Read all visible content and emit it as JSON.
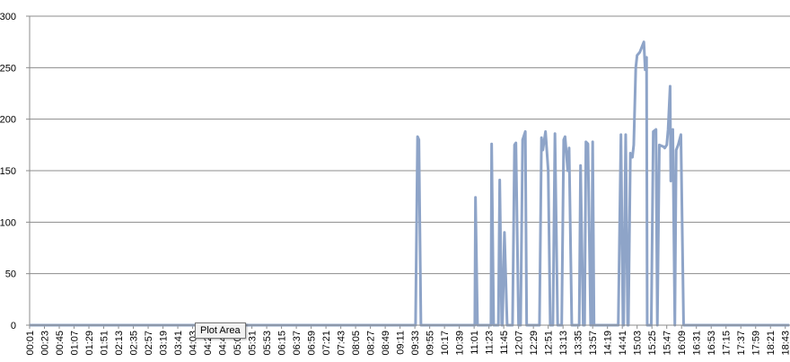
{
  "chart_data": {
    "type": "line",
    "color": "#8ea4c8",
    "grid": true,
    "ylim": [
      0,
      300
    ],
    "yticks": [
      0,
      50,
      100,
      150,
      200,
      250,
      300
    ],
    "xlim": [
      1,
      1130
    ],
    "xticks": [
      {
        "value": 1,
        "label": "00:01"
      },
      {
        "value": 23,
        "label": "00:23"
      },
      {
        "value": 45,
        "label": "00:45"
      },
      {
        "value": 67,
        "label": "01:07"
      },
      {
        "value": 89,
        "label": "01:29"
      },
      {
        "value": 111,
        "label": "01:51"
      },
      {
        "value": 133,
        "label": "02:13"
      },
      {
        "value": 155,
        "label": "02:35"
      },
      {
        "value": 177,
        "label": "02:57"
      },
      {
        "value": 199,
        "label": "03:19"
      },
      {
        "value": 221,
        "label": "03:41"
      },
      {
        "value": 243,
        "label": "04:03"
      },
      {
        "value": 265,
        "label": "04:25"
      },
      {
        "value": 287,
        "label": "04:47"
      },
      {
        "value": 309,
        "label": "05:09"
      },
      {
        "value": 331,
        "label": "05:31"
      },
      {
        "value": 353,
        "label": "05:53"
      },
      {
        "value": 375,
        "label": "06:15"
      },
      {
        "value": 397,
        "label": "06:37"
      },
      {
        "value": 419,
        "label": "06:59"
      },
      {
        "value": 441,
        "label": "07:21"
      },
      {
        "value": 463,
        "label": "07:43"
      },
      {
        "value": 485,
        "label": "08:05"
      },
      {
        "value": 507,
        "label": "08:27"
      },
      {
        "value": 529,
        "label": "08:49"
      },
      {
        "value": 551,
        "label": "09:11"
      },
      {
        "value": 573,
        "label": "09:33"
      },
      {
        "value": 595,
        "label": "09:55"
      },
      {
        "value": 617,
        "label": "10:17"
      },
      {
        "value": 639,
        "label": "10:39"
      },
      {
        "value": 661,
        "label": "11:01"
      },
      {
        "value": 683,
        "label": "11:23"
      },
      {
        "value": 705,
        "label": "11:45"
      },
      {
        "value": 727,
        "label": "12:07"
      },
      {
        "value": 749,
        "label": "12:29"
      },
      {
        "value": 771,
        "label": "12:51"
      },
      {
        "value": 793,
        "label": "13:13"
      },
      {
        "value": 815,
        "label": "13:35"
      },
      {
        "value": 837,
        "label": "13:57"
      },
      {
        "value": 859,
        "label": "14:19"
      },
      {
        "value": 881,
        "label": "14:41"
      },
      {
        "value": 903,
        "label": "15:03"
      },
      {
        "value": 925,
        "label": "15:25"
      },
      {
        "value": 947,
        "label": "15:47"
      },
      {
        "value": 969,
        "label": "16:09"
      },
      {
        "value": 991,
        "label": "16:31"
      },
      {
        "value": 1013,
        "label": "16:53"
      },
      {
        "value": 1035,
        "label": "17:15"
      },
      {
        "value": 1057,
        "label": "17:37"
      },
      {
        "value": 1079,
        "label": "17:59"
      },
      {
        "value": 1101,
        "label": "18:21"
      },
      {
        "value": 1123,
        "label": "18:43"
      }
    ],
    "x": [
      1,
      574,
      577,
      579,
      582,
      662,
      663,
      666,
      686,
      687,
      690,
      697,
      699,
      702,
      703,
      706,
      710,
      718,
      721,
      723,
      727,
      730,
      733,
      737,
      739,
      758,
      761,
      763,
      767,
      771,
      774,
      778,
      781,
      785,
      791,
      794,
      796,
      800,
      802,
      806,
      817,
      819,
      823,
      825,
      827,
      830,
      834,
      835,
      837,
      839,
      875,
      879,
      882,
      883,
      886,
      889,
      890,
      893,
      896,
      898,
      901,
      903,
      907,
      910,
      913,
      915,
      917,
      918,
      924,
      927,
      931,
      933,
      936,
      943,
      944,
      947,
      949,
      952,
      953,
      956,
      959,
      961,
      964,
      968,
      972,
      1129
    ],
    "values": [
      0,
      0,
      183,
      180,
      0,
      0,
      124,
      0,
      0,
      176,
      0,
      0,
      141,
      0,
      0,
      90,
      0,
      0,
      175,
      177,
      0,
      0,
      180,
      188,
      0,
      0,
      182,
      170,
      188,
      150,
      0,
      0,
      186,
      0,
      0,
      180,
      183,
      150,
      172,
      0,
      0,
      155,
      0,
      0,
      178,
      176,
      0,
      0,
      178,
      0,
      0,
      185,
      0,
      0,
      185,
      0,
      0,
      167,
      163,
      175,
      250,
      262,
      265,
      270,
      275,
      248,
      260,
      0,
      0,
      188,
      190,
      0,
      175,
      173,
      172,
      175,
      190,
      232,
      140,
      190,
      0,
      170,
      175,
      185,
      0,
      0
    ]
  },
  "tooltip": "Plot Area"
}
